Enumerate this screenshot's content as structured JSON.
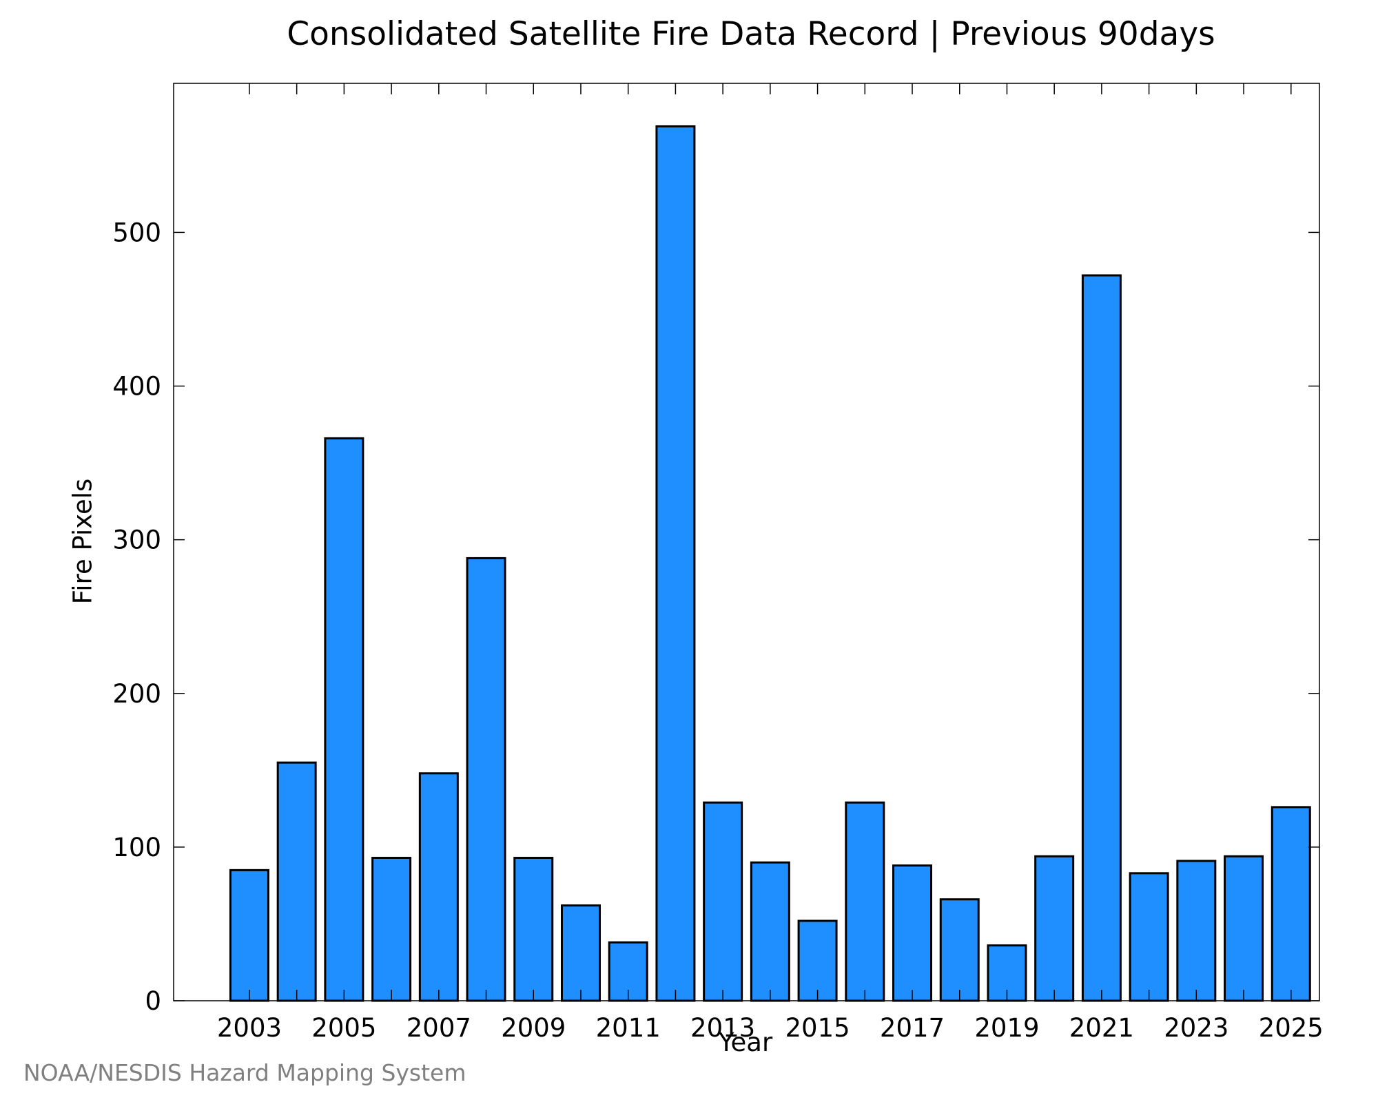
{
  "chart_data": {
    "type": "bar",
    "title": "Consolidated Satellite Fire Data Record | Previous 90days",
    "xlabel": "Year",
    "ylabel": "Fire Pixels",
    "footer": "NOAA/NESDIS Hazard Mapping System",
    "categories": [
      2003,
      2004,
      2005,
      2006,
      2007,
      2008,
      2009,
      2010,
      2011,
      2012,
      2013,
      2014,
      2015,
      2016,
      2017,
      2018,
      2019,
      2020,
      2021,
      2022,
      2023,
      2024,
      2025
    ],
    "values": [
      85,
      155,
      366,
      93,
      148,
      288,
      93,
      62,
      38,
      569,
      129,
      90,
      52,
      129,
      88,
      66,
      36,
      94,
      472,
      83,
      91,
      94,
      126
    ],
    "x_tick_labels": [
      "2003",
      "2005",
      "2007",
      "2009",
      "2011",
      "2013",
      "2015",
      "2017",
      "2019",
      "2021",
      "2023",
      "2025"
    ],
    "y_ticks": [
      0,
      100,
      200,
      300,
      400,
      500
    ],
    "ylim": [
      0,
      597
    ],
    "xlim": [
      2001.4,
      2025.6
    ],
    "grid": false,
    "colors": {
      "bar_fill": "#1f8fff",
      "bar_stroke": "#000000",
      "axis": "#000000",
      "footer": "#808080"
    }
  }
}
